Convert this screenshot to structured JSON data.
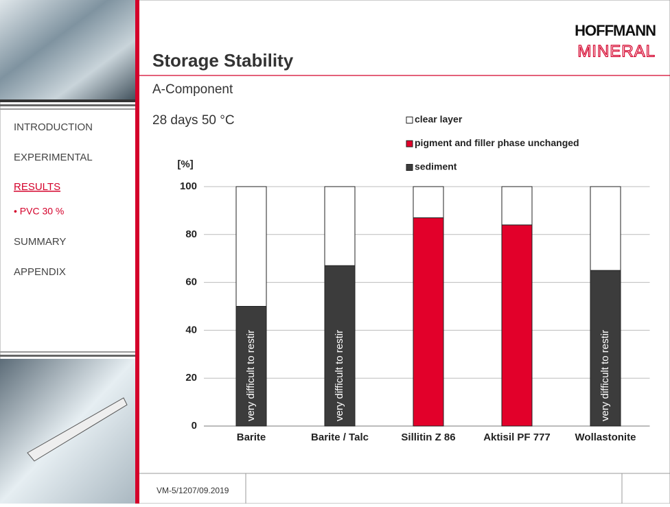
{
  "nav": {
    "items": [
      {
        "label": "INTRODUCTION"
      },
      {
        "label": "EXPERIMENTAL"
      },
      {
        "label": "RESULTS",
        "active": true
      },
      {
        "label": "• PVC 30 %",
        "sub": true
      },
      {
        "label": "SUMMARY"
      },
      {
        "label": "APPENDIX"
      }
    ]
  },
  "header": {
    "title": "Storage Stability",
    "logo_top": "HOFFMANN",
    "logo_bottom": "MINERAL"
  },
  "subtitle": "A-Component",
  "condition": "28 days  50 °C",
  "footer": {
    "code": "VM-5/1207/09.2019"
  },
  "chart_data": {
    "type": "stacked_bar",
    "ylabel": "[%]",
    "categories": [
      "Barite",
      "Barite / Talc",
      "Sillitin  Z 86",
      "Aktisil PF 777",
      "Wollastonite"
    ],
    "series": [
      {
        "name": "clear layer",
        "color": "#ffffff",
        "values": [
          50,
          33,
          13,
          16,
          35
        ]
      },
      {
        "name": "pigment and filler phase unchanged",
        "color": "#e2002a",
        "values": [
          0,
          0,
          87,
          84,
          0
        ]
      },
      {
        "name": "sediment",
        "color": "#3c3c3c",
        "values": [
          50,
          67,
          0,
          0,
          65
        ]
      }
    ],
    "bar_annotations": [
      "very difficult to restir",
      "very difficult to restir",
      null,
      null,
      "very difficult to restir"
    ],
    "ylim": [
      0,
      100
    ],
    "yticks": [
      0,
      20,
      40,
      60,
      80,
      100
    ],
    "grid": true
  }
}
